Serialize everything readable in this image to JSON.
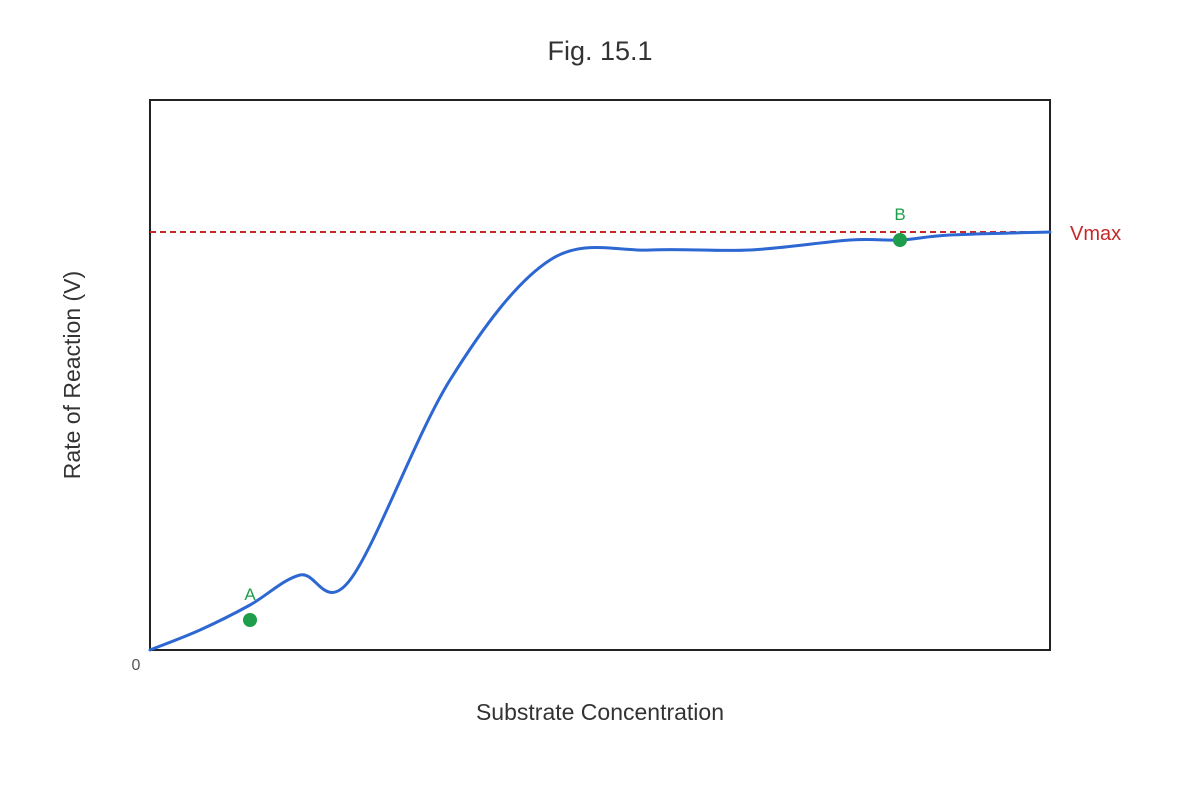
{
  "chart_data": {
    "type": "line",
    "title": "Fig. 15.1",
    "xlabel": "Substrate Concentration",
    "ylabel": "Rate of Reaction (V)",
    "origin_label": "0",
    "xlim": [
      0,
      9
    ],
    "ylim": [
      0,
      5.5
    ],
    "grid": false,
    "series": [
      {
        "x": [
          0,
          0.5,
          1,
          1.5,
          2,
          3,
          4,
          5,
          6,
          7,
          7.5,
          8,
          9
        ],
        "values": [
          0,
          0.2,
          0.45,
          0.75,
          0.7,
          2.7,
          3.9,
          4.0,
          4.0,
          4.1,
          4.1,
          4.15,
          4.18
        ],
        "color": "#2d67d2"
      }
    ],
    "reference_lines": [
      {
        "label": "Vmax",
        "y": 4.18,
        "color": "#c62828",
        "style": "dashed"
      }
    ],
    "annotations": [
      {
        "label": "A",
        "x": 1,
        "y": 0.3,
        "color": "#1e9e4a"
      },
      {
        "label": "B",
        "x": 7.5,
        "y": 4.1,
        "color": "#1e9e4a"
      }
    ]
  }
}
